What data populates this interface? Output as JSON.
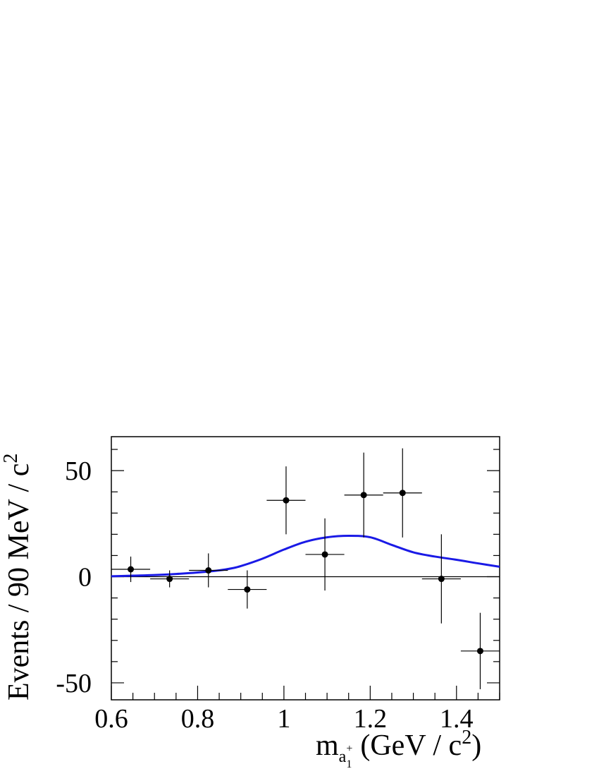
{
  "chart_data": {
    "type": "scatter",
    "xlabel": {
      "main": "m",
      "sub": "a",
      "sub_sub": "1",
      "sup": "+",
      "units_prefix": "(GeV / c",
      "units_power": "2",
      "units_suffix": ")"
    },
    "ylabel": {
      "main": "Events / 90 MeV / c",
      "power": "2"
    },
    "xlim": [
      0.6,
      1.5
    ],
    "ylim": [
      -58,
      66
    ],
    "xticks": [
      0.6,
      0.8,
      1,
      1.2,
      1.4
    ],
    "xtick_labels": [
      "0.6",
      "0.8",
      "1",
      "1.2",
      "1.4"
    ],
    "yticks": [
      -50,
      0,
      50
    ],
    "ytick_labels": [
      "-50",
      "0",
      "50"
    ],
    "grid": false,
    "series": [
      {
        "kind": "points",
        "x": [
          0.645,
          0.735,
          0.825,
          0.915,
          1.005,
          1.095,
          1.185,
          1.275,
          1.365,
          1.455
        ],
        "y": [
          3.5,
          -1,
          3,
          -6,
          36,
          10.5,
          38.5,
          39.5,
          -1,
          -35
        ],
        "yerr": [
          6,
          4,
          8,
          9,
          16,
          17,
          20,
          21,
          21,
          18
        ],
        "xerr": 0.045,
        "color": "#000000"
      },
      {
        "kind": "line",
        "x": [
          0.6,
          0.65,
          0.7,
          0.75,
          0.8,
          0.85,
          0.88,
          0.9,
          0.95,
          1.0,
          1.05,
          1.1,
          1.15,
          1.2,
          1.25,
          1.3,
          1.35,
          1.4,
          1.45,
          1.5
        ],
        "y": [
          0.2,
          0.5,
          0.8,
          1.3,
          2.0,
          3.0,
          4.0,
          5.0,
          8.5,
          12.8,
          16.5,
          18.6,
          19.3,
          18.6,
          15.0,
          11.5,
          9.5,
          8.0,
          6.3,
          4.7
        ],
        "color": "#1a1ae6"
      }
    ],
    "zero_line": true
  }
}
